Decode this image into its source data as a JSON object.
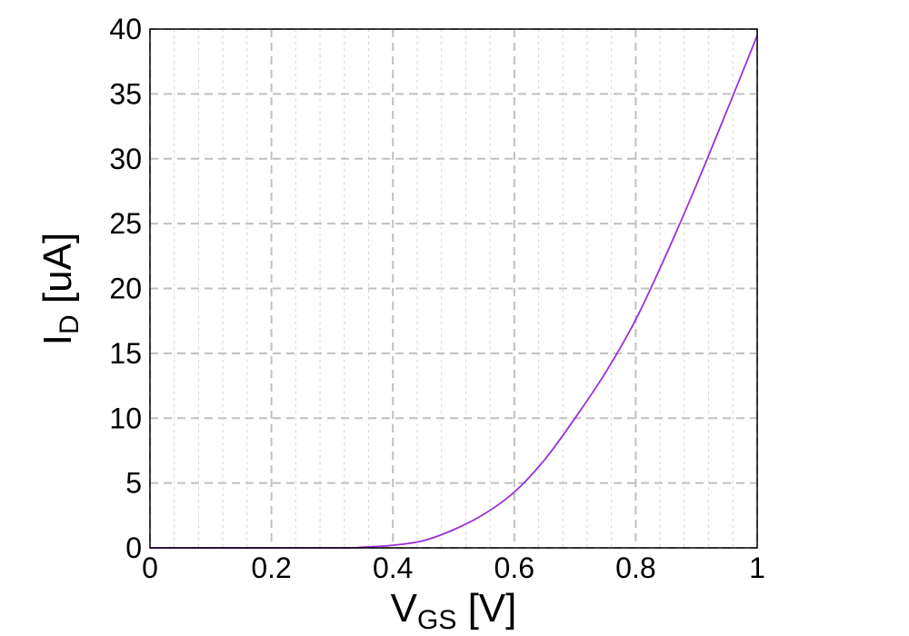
{
  "chart_data": {
    "type": "line",
    "title": "",
    "xlabel": {
      "main": "V",
      "sub": "GS",
      "suffix": " [V]"
    },
    "ylabel": {
      "main": "I",
      "sub": "D",
      "suffix": " [uA]"
    },
    "xlim": [
      0,
      1
    ],
    "ylim": [
      0,
      40
    ],
    "x_ticks": [
      "0",
      "0.2",
      "0.4",
      "0.6",
      "0.8",
      "1"
    ],
    "y_ticks": [
      "0",
      "5",
      "10",
      "15",
      "20",
      "25",
      "30",
      "35",
      "40"
    ],
    "grid": true,
    "series": [
      {
        "color": "#9b30d9",
        "x": [
          0.0,
          0.3,
          0.35,
          0.4,
          0.45,
          0.5,
          0.55,
          0.6,
          0.65,
          0.7,
          0.75,
          0.8,
          0.85,
          0.9,
          0.95,
          1.0
        ],
        "y": [
          0.0,
          0.0,
          0.05,
          0.2,
          0.55,
          1.4,
          2.6,
          4.3,
          6.8,
          10.0,
          13.5,
          17.6,
          22.6,
          28.0,
          33.7,
          39.5
        ]
      }
    ]
  }
}
